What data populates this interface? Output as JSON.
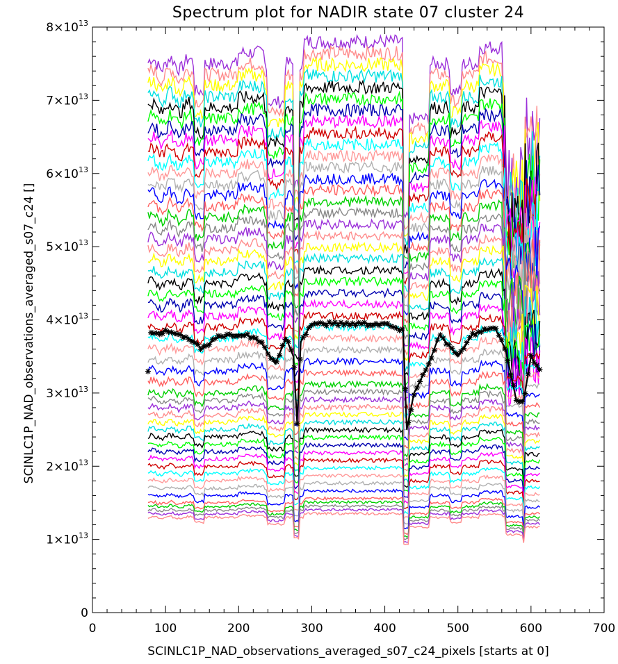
{
  "chart_data": {
    "type": "line",
    "title": "Spectrum plot for NADIR state 07 cluster 24",
    "xlabel": "SCINLC1P_NAD_observations_averaged_s07_c24_pixels [starts at 0]",
    "ylabel": "SCINLC1P_NAD_observations_averaged_s07_c24 []",
    "xlim": [
      0,
      700
    ],
    "ylim": [
      0,
      80000000000000
    ],
    "xticks": [
      0,
      100,
      200,
      300,
      400,
      500,
      600,
      700
    ],
    "xtick_labels": [
      "0",
      "100",
      "200",
      "300",
      "400",
      "500",
      "600",
      "700"
    ],
    "yticks": [
      0,
      10000000000000,
      20000000000000,
      30000000000000,
      40000000000000,
      50000000000000,
      60000000000000,
      70000000000000,
      80000000000000
    ],
    "ytick_labels": [
      {
        "mantissa": "0",
        "exponent": ""
      },
      {
        "mantissa": "1×10",
        "exponent": "13"
      },
      {
        "mantissa": "2×10",
        "exponent": "13"
      },
      {
        "mantissa": "3×10",
        "exponent": "13"
      },
      {
        "mantissa": "4×10",
        "exponent": "13"
      },
      {
        "mantissa": "5×10",
        "exponent": "13"
      },
      {
        "mantissa": "6×10",
        "exponent": "13"
      },
      {
        "mantissa": "7×10",
        "exponent": "13"
      },
      {
        "mantissa": "8×10",
        "exponent": "13"
      }
    ],
    "grid": false,
    "x_range": [
      76,
      612
    ],
    "series_note_levels_1e13": [
      7.5,
      7.35,
      7.2,
      7.05,
      6.9,
      6.75,
      6.6,
      6.45,
      6.3,
      6.15,
      6.0,
      5.85,
      5.7,
      5.55,
      5.4,
      5.25,
      5.1,
      4.95,
      4.8,
      4.65,
      4.5,
      4.35,
      4.2,
      4.05,
      3.9,
      3.75,
      3.6,
      3.45,
      3.3,
      3.15,
      3.0,
      2.9,
      2.8,
      2.7,
      2.6,
      2.5,
      2.4,
      2.3,
      2.2,
      2.1,
      2.0,
      1.9,
      1.8,
      1.7,
      1.6,
      1.5,
      1.45,
      1.4,
      1.35,
      1.3
    ],
    "series_colors": [
      "#9b30d9",
      "#ff8c8c",
      "#ffff00",
      "#00e0e0",
      "#000000",
      "#00ff00",
      "#0000b0",
      "#ff00ff",
      "#d00000",
      "#00ffff",
      "#ff9999",
      "#b0b0b0",
      "#0000ff",
      "#ff6060",
      "#00d000",
      "#888888"
    ],
    "mean_series": {
      "marker": "asterisk",
      "color": "#000000",
      "level_1e13": 3.8,
      "points": [
        [
          80,
          3.8
        ],
        [
          100,
          3.85
        ],
        [
          120,
          3.8
        ],
        [
          140,
          3.7
        ],
        [
          150,
          3.6
        ],
        [
          170,
          3.75
        ],
        [
          190,
          3.8
        ],
        [
          210,
          3.8
        ],
        [
          230,
          3.7
        ],
        [
          250,
          3.4
        ],
        [
          265,
          3.75
        ],
        [
          275,
          3.5
        ],
        [
          280,
          2.6
        ],
        [
          285,
          3.7
        ],
        [
          300,
          3.95
        ],
        [
          350,
          3.95
        ],
        [
          400,
          3.95
        ],
        [
          425,
          3.85
        ],
        [
          430,
          2.5
        ],
        [
          440,
          3.0
        ],
        [
          460,
          3.4
        ],
        [
          475,
          3.8
        ],
        [
          500,
          3.5
        ],
        [
          520,
          3.8
        ],
        [
          550,
          3.9
        ],
        [
          565,
          3.6
        ],
        [
          580,
          2.9
        ],
        [
          590,
          2.9
        ],
        [
          600,
          3.5
        ],
        [
          612,
          3.3
        ]
      ]
    }
  }
}
